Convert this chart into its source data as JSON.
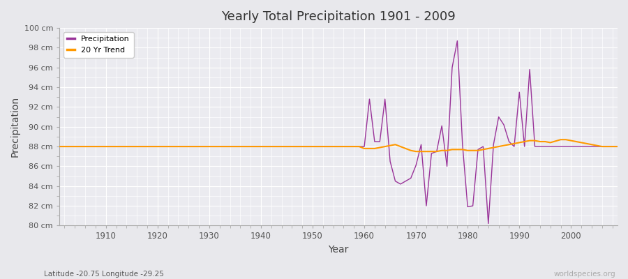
{
  "title": "Yearly Total Precipitation 1901 - 2009",
  "xlabel": "Year",
  "ylabel": "Precipitation",
  "xlim": [
    1901,
    2009
  ],
  "ylim": [
    80,
    100
  ],
  "yticks": [
    80,
    82,
    84,
    86,
    88,
    90,
    92,
    94,
    96,
    98,
    100
  ],
  "ytick_labels": [
    "80 cm",
    "82 cm",
    "84 cm",
    "86 cm",
    "88 cm",
    "90 cm",
    "92 cm",
    "94 cm",
    "96 cm",
    "98 cm",
    "100 cm"
  ],
  "xticks": [
    1910,
    1920,
    1930,
    1940,
    1950,
    1960,
    1970,
    1980,
    1990,
    2000
  ],
  "bg_color": "#e8e8ec",
  "plot_bg_color": "#ebebf0",
  "grid_color": "#ffffff",
  "precip_color": "#993399",
  "trend_color": "#ff9900",
  "subtitle": "Latitude -20.75 Longitude -29.25",
  "watermark": "worldspecies.org",
  "years": [
    1901,
    1902,
    1903,
    1904,
    1905,
    1906,
    1907,
    1908,
    1909,
    1910,
    1911,
    1912,
    1913,
    1914,
    1915,
    1916,
    1917,
    1918,
    1919,
    1920,
    1921,
    1922,
    1923,
    1924,
    1925,
    1926,
    1927,
    1928,
    1929,
    1930,
    1931,
    1932,
    1933,
    1934,
    1935,
    1936,
    1937,
    1938,
    1939,
    1940,
    1941,
    1942,
    1943,
    1944,
    1945,
    1946,
    1947,
    1948,
    1949,
    1950,
    1951,
    1952,
    1953,
    1954,
    1955,
    1956,
    1957,
    1958,
    1959,
    1960,
    1961,
    1962,
    1963,
    1964,
    1965,
    1966,
    1967,
    1968,
    1969,
    1970,
    1971,
    1972,
    1973,
    1974,
    1975,
    1976,
    1977,
    1978,
    1979,
    1980,
    1981,
    1982,
    1983,
    1984,
    1985,
    1986,
    1987,
    1988,
    1989,
    1990,
    1991,
    1992,
    1993,
    1994,
    1995,
    1996,
    1997,
    1998,
    1999,
    2000,
    2001,
    2002,
    2003,
    2004,
    2005,
    2006,
    2007,
    2008,
    2009
  ],
  "precip": [
    88.0,
    88.0,
    88.0,
    88.0,
    88.0,
    88.0,
    88.0,
    88.0,
    88.0,
    88.0,
    88.0,
    88.0,
    88.0,
    88.0,
    88.0,
    88.0,
    88.0,
    88.0,
    88.0,
    88.0,
    88.0,
    88.0,
    88.0,
    88.0,
    88.0,
    88.0,
    88.0,
    88.0,
    88.0,
    88.0,
    88.0,
    88.0,
    88.0,
    88.0,
    88.0,
    88.0,
    88.0,
    88.0,
    88.0,
    88.0,
    88.0,
    88.0,
    88.0,
    88.0,
    88.0,
    88.0,
    88.0,
    88.0,
    88.0,
    88.0,
    88.0,
    88.0,
    88.0,
    88.0,
    88.0,
    88.0,
    88.0,
    88.0,
    88.0,
    88.0,
    92.8,
    88.5,
    88.5,
    92.8,
    86.5,
    84.5,
    84.2,
    84.5,
    84.8,
    86.1,
    88.2,
    82.0,
    87.3,
    87.5,
    90.1,
    86.0,
    96.0,
    98.7,
    88.2,
    81.9,
    82.0,
    87.7,
    88.0,
    80.2,
    88.2,
    91.0,
    90.2,
    88.5,
    88.0,
    93.5,
    88.0,
    95.8,
    88.0,
    88.0,
    88.0,
    88.0,
    88.0,
    88.0,
    88.0,
    88.0,
    88.0,
    88.0,
    88.0,
    88.0,
    88.0,
    88.0,
    88.0,
    88.0,
    88.0
  ],
  "trend": [
    88.0,
    88.0,
    88.0,
    88.0,
    88.0,
    88.0,
    88.0,
    88.0,
    88.0,
    88.0,
    88.0,
    88.0,
    88.0,
    88.0,
    88.0,
    88.0,
    88.0,
    88.0,
    88.0,
    88.0,
    88.0,
    88.0,
    88.0,
    88.0,
    88.0,
    88.0,
    88.0,
    88.0,
    88.0,
    88.0,
    88.0,
    88.0,
    88.0,
    88.0,
    88.0,
    88.0,
    88.0,
    88.0,
    88.0,
    88.0,
    88.0,
    88.0,
    88.0,
    88.0,
    88.0,
    88.0,
    88.0,
    88.0,
    88.0,
    88.0,
    88.0,
    88.0,
    88.0,
    88.0,
    88.0,
    88.0,
    88.0,
    88.0,
    88.0,
    87.8,
    87.8,
    87.8,
    87.9,
    88.0,
    88.1,
    88.2,
    88.0,
    87.8,
    87.6,
    87.5,
    87.5,
    87.5,
    87.5,
    87.5,
    87.6,
    87.6,
    87.7,
    87.7,
    87.7,
    87.6,
    87.6,
    87.6,
    87.7,
    87.8,
    87.9,
    88.0,
    88.1,
    88.2,
    88.3,
    88.4,
    88.5,
    88.6,
    88.6,
    88.5,
    88.5,
    88.4,
    88.55,
    88.7,
    88.7,
    88.6,
    88.5,
    88.4,
    88.3,
    88.2,
    88.1,
    88.0,
    88.0,
    88.0,
    88.0
  ]
}
